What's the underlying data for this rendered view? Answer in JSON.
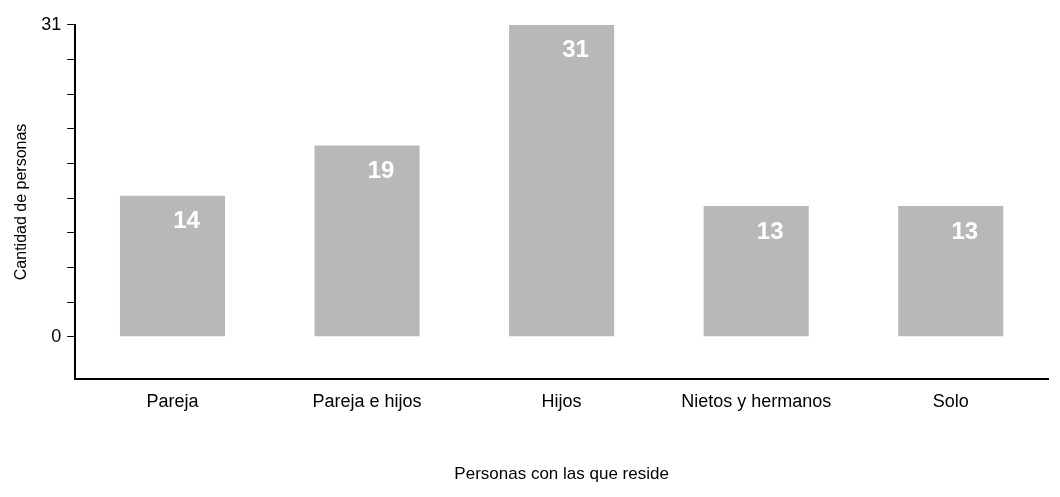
{
  "chart_data": {
    "type": "bar",
    "xlabel": "Personas con las que reside",
    "ylabel": "Cantidad de personas",
    "categories": [
      "Pareja",
      "Pareja e hijos",
      "Hijos",
      "Nietos y hermanos",
      "Solo"
    ],
    "values": [
      14,
      19,
      31,
      13,
      13
    ],
    "color": "#b8b8b8",
    "ylim": [
      -4.2,
      31
    ],
    "yticks": [
      0,
      {
        "value": 3.44,
        "label": null
      },
      {
        "value": 6.89,
        "label": null
      },
      {
        "value": 10.33,
        "label": null
      },
      {
        "value": 13.78,
        "label": null
      },
      {
        "value": 17.22,
        "label": null
      },
      {
        "value": 20.67,
        "label": null
      },
      {
        "value": 24.11,
        "label": null
      },
      {
        "value": 27.56,
        "label": null
      },
      31
    ],
    "data_labels": true,
    "grid": false,
    "legend": false
  }
}
